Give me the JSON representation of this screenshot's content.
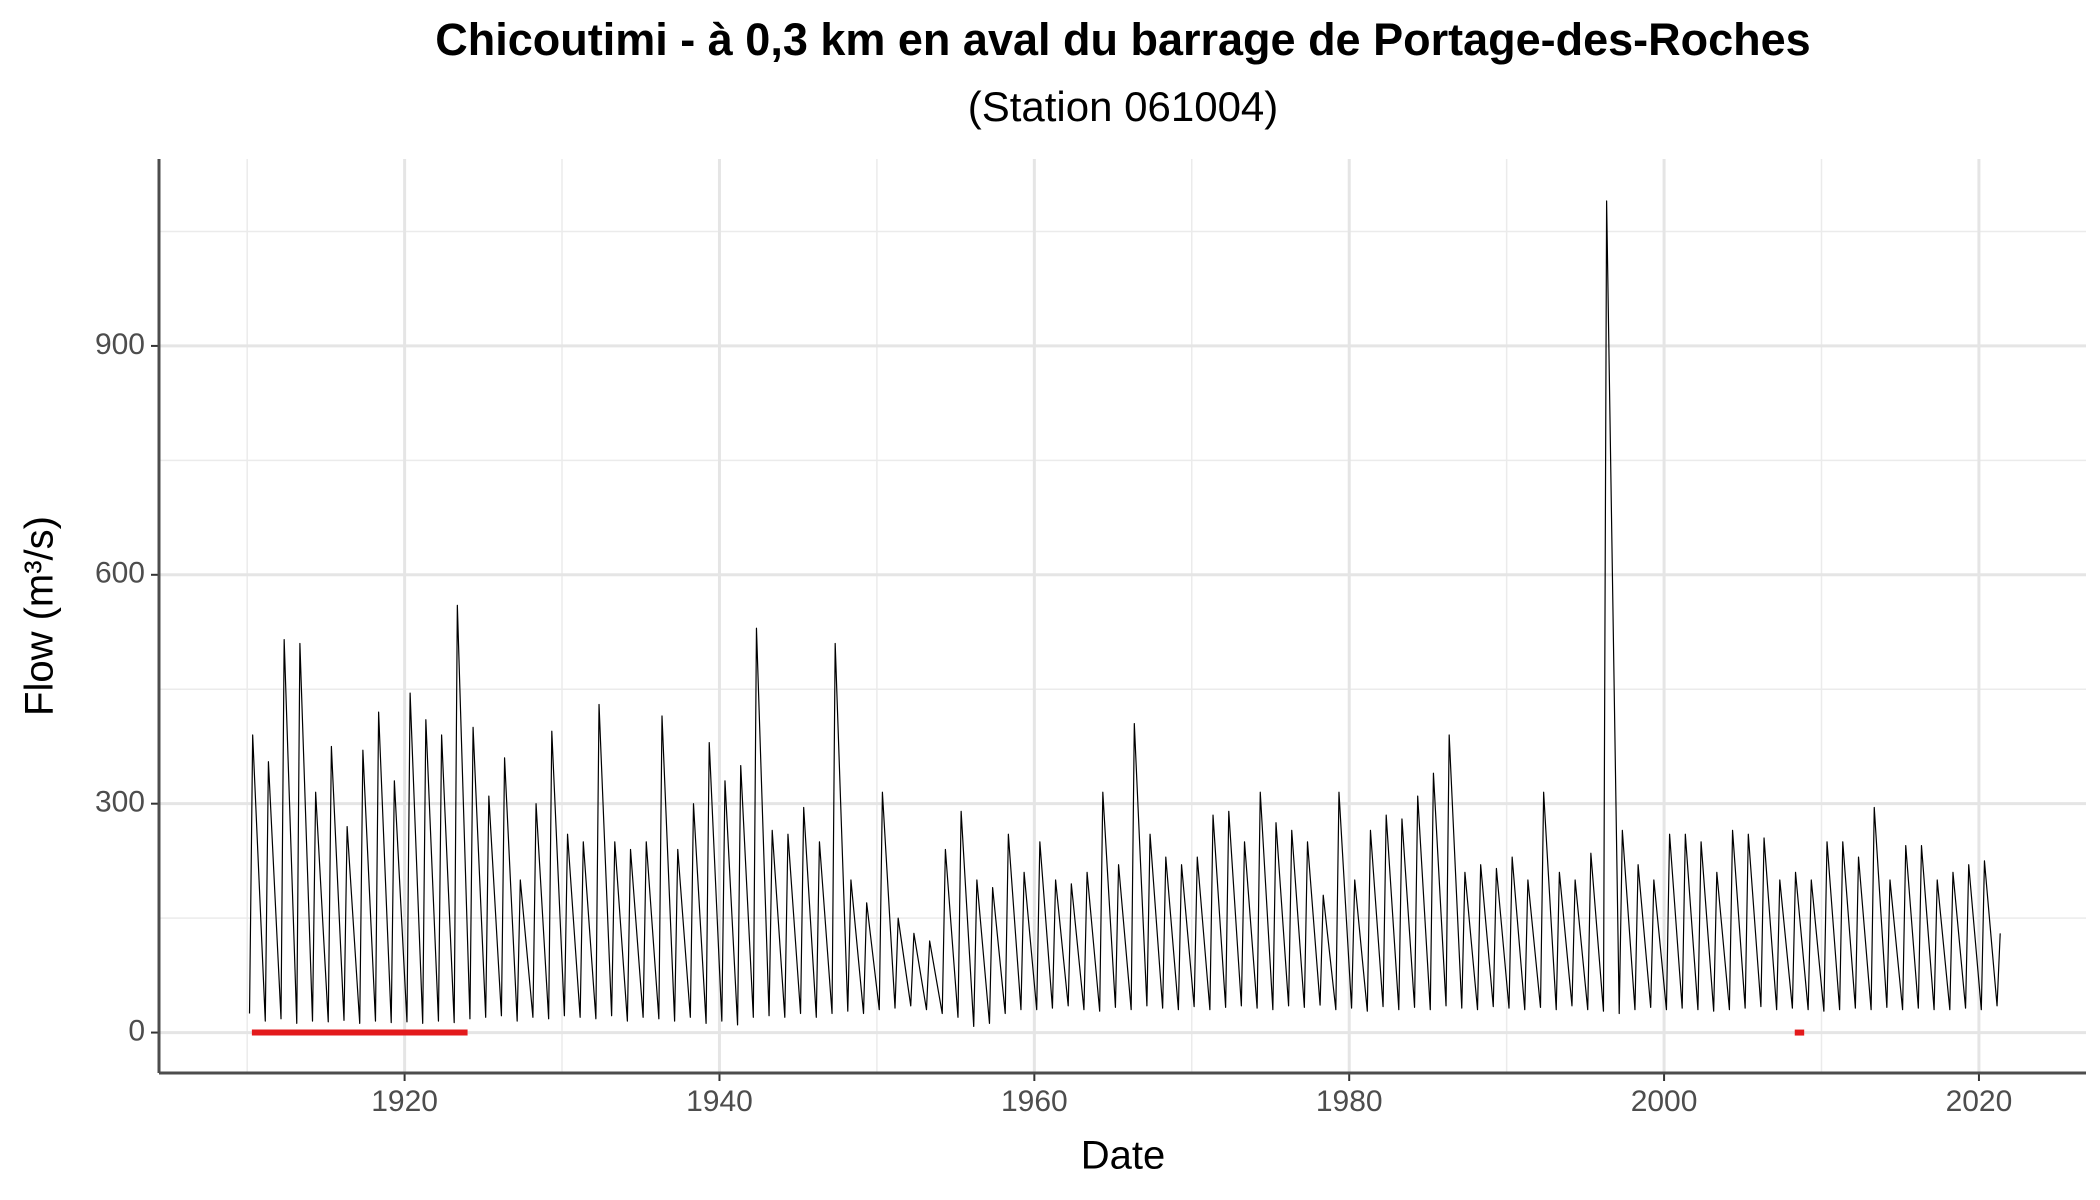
{
  "chart_data": {
    "type": "line",
    "title": "Chicoutimi - à 0,3 km en aval du barrage de Portage-des-Roches",
    "subtitle": "(Station 061004)",
    "x_label": "Date",
    "y_label": "Flow (m³/s)",
    "xlim": [
      1904.4,
      2026.8
    ],
    "ylim": [
      -53,
      1145
    ],
    "xticks": [
      1920,
      1940,
      1960,
      1980,
      2000,
      2020
    ],
    "xminor": [
      1910,
      1930,
      1950,
      1970,
      1990,
      2010
    ],
    "yticks": [
      0,
      300,
      600,
      900
    ],
    "yminor": [
      150,
      450,
      750,
      1050
    ],
    "grid": true,
    "series": [
      {
        "color": "#000000",
        "line_width": 1.2,
        "x": [
          1910.15,
          1910.35,
          1911.15,
          1911.35,
          1912.15,
          1912.35,
          1913.15,
          1913.35,
          1914.15,
          1914.35,
          1915.15,
          1915.35,
          1916.15,
          1916.35,
          1917.15,
          1917.35,
          1918.15,
          1918.35,
          1919.15,
          1919.35,
          1920.15,
          1920.35,
          1921.15,
          1921.35,
          1922.15,
          1922.35,
          1923.15,
          1923.35,
          1924.15,
          1924.35,
          1925.15,
          1925.35,
          1926.15,
          1926.35,
          1927.15,
          1927.35,
          1928.15,
          1928.35,
          1929.15,
          1929.35,
          1930.15,
          1930.35,
          1931.15,
          1931.35,
          1932.15,
          1932.35,
          1933.15,
          1933.35,
          1934.15,
          1934.35,
          1935.15,
          1935.35,
          1936.15,
          1936.35,
          1937.15,
          1937.35,
          1938.15,
          1938.35,
          1939.15,
          1939.35,
          1940.15,
          1940.35,
          1941.15,
          1941.35,
          1942.15,
          1942.35,
          1943.15,
          1943.35,
          1944.15,
          1944.35,
          1945.15,
          1945.35,
          1946.15,
          1946.35,
          1947.15,
          1947.35,
          1948.15,
          1948.35,
          1949.15,
          1949.35,
          1950.15,
          1950.35,
          1951.15,
          1951.35,
          1952.15,
          1952.35,
          1953.15,
          1953.35,
          1954.15,
          1954.35,
          1955.15,
          1955.35,
          1956.15,
          1956.35,
          1957.15,
          1957.35,
          1958.15,
          1958.35,
          1959.15,
          1959.35,
          1960.15,
          1960.35,
          1961.15,
          1961.35,
          1962.15,
          1962.35,
          1963.15,
          1963.35,
          1964.15,
          1964.35,
          1965.15,
          1965.35,
          1966.15,
          1966.35,
          1967.15,
          1967.35,
          1968.15,
          1968.35,
          1969.15,
          1969.35,
          1970.15,
          1970.35,
          1971.15,
          1971.35,
          1972.15,
          1972.35,
          1973.15,
          1973.35,
          1974.15,
          1974.35,
          1975.15,
          1975.35,
          1976.15,
          1976.35,
          1977.15,
          1977.35,
          1978.15,
          1978.35,
          1979.15,
          1979.35,
          1980.15,
          1980.35,
          1981.15,
          1981.35,
          1982.15,
          1982.35,
          1983.15,
          1983.35,
          1984.15,
          1984.35,
          1985.15,
          1985.35,
          1986.15,
          1986.35,
          1987.15,
          1987.35,
          1988.15,
          1988.35,
          1989.15,
          1989.35,
          1990.15,
          1990.35,
          1991.15,
          1991.35,
          1992.15,
          1992.35,
          1993.15,
          1993.35,
          1994.15,
          1994.35,
          1995.15,
          1995.35,
          1996.15,
          1996.35,
          1997.15,
          1997.35,
          1998.15,
          1998.35,
          1999.15,
          1999.35,
          2000.15,
          2000.35,
          2001.15,
          2001.35,
          2002.15,
          2002.35,
          2003.15,
          2003.35,
          2004.15,
          2004.35,
          2005.15,
          2005.35,
          2006.15,
          2006.35,
          2007.15,
          2007.35,
          2008.15,
          2008.35,
          2009.15,
          2009.35,
          2010.15,
          2010.35,
          2011.15,
          2011.35,
          2012.15,
          2012.35,
          2013.15,
          2013.35,
          2014.15,
          2014.35,
          2015.15,
          2015.35,
          2016.15,
          2016.35,
          2017.15,
          2017.35,
          2018.15,
          2018.35,
          2019.15,
          2019.35,
          2020.15,
          2020.35,
          2021.15,
          2021.35
        ],
        "values": [
          25,
          390,
          15,
          355,
          18,
          515,
          12,
          510,
          15,
          315,
          14,
          375,
          16,
          270,
          12,
          370,
          15,
          420,
          13,
          330,
          14,
          445,
          12,
          410,
          15,
          390,
          13,
          560,
          18,
          400,
          20,
          310,
          22,
          360,
          15,
          200,
          20,
          300,
          18,
          395,
          22,
          260,
          20,
          250,
          18,
          430,
          22,
          250,
          15,
          240,
          20,
          250,
          18,
          415,
          15,
          240,
          20,
          300,
          12,
          380,
          15,
          330,
          10,
          350,
          20,
          530,
          22,
          265,
          20,
          260,
          25,
          295,
          20,
          250,
          25,
          510,
          28,
          200,
          25,
          170,
          30,
          315,
          32,
          150,
          35,
          130,
          30,
          120,
          25,
          240,
          20,
          290,
          8,
          200,
          12,
          190,
          25,
          260,
          30,
          210,
          30,
          250,
          32,
          200,
          35,
          195,
          30,
          210,
          28,
          315,
          33,
          220,
          30,
          405,
          35,
          260,
          32,
          230,
          30,
          220,
          34,
          230,
          30,
          285,
          33,
          290,
          35,
          250,
          32,
          315,
          30,
          275,
          35,
          265,
          33,
          250,
          36,
          180,
          30,
          315,
          32,
          200,
          28,
          265,
          34,
          285,
          30,
          280,
          33,
          310,
          30,
          340,
          35,
          390,
          32,
          210,
          30,
          220,
          34,
          215,
          32,
          230,
          30,
          200,
          33,
          315,
          30,
          210,
          35,
          200,
          30,
          235,
          28,
          1090,
          25,
          265,
          30,
          220,
          33,
          200,
          30,
          260,
          32,
          260,
          30,
          250,
          28,
          210,
          30,
          265,
          32,
          260,
          34,
          255,
          30,
          200,
          32,
          210,
          30,
          200,
          28,
          250,
          30,
          250,
          32,
          230,
          30,
          295,
          33,
          200,
          30,
          245,
          32,
          245,
          30,
          200,
          30,
          210,
          32,
          220,
          30,
          225,
          35,
          130
        ]
      },
      {
        "color": "#e31a1c",
        "line_width": 6,
        "x": [
          1910.3,
          1924.0
        ],
        "values": [
          0,
          0
        ]
      },
      {
        "color": "#e31a1c",
        "line_width": 6,
        "x": [
          2008.3,
          2008.9
        ],
        "values": [
          0,
          0
        ]
      }
    ]
  }
}
